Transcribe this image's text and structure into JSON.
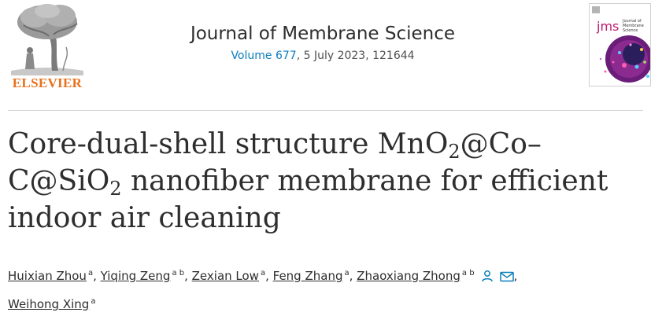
{
  "publisher": {
    "name": "ELSEVIER"
  },
  "journal": {
    "title": "Journal of Membrane Science",
    "volume_link": "Volume 677",
    "date_article": ", 5 July 2023, 121644"
  },
  "cover": {
    "abbr": "jms",
    "line1": "Journal of",
    "line2": "Membrane",
    "line3": "Science"
  },
  "article": {
    "title_part1": "Core-dual-shell structure MnO",
    "sub1": "2",
    "title_part2": "@Co–C@SiO",
    "sub2": "2",
    "title_part3": " nanofiber membrane for efficient indoor air cleaning"
  },
  "authors": [
    {
      "name": "Huixian Zhou",
      "affil": "a",
      "sep": ", "
    },
    {
      "name": "Yiqing Zeng",
      "affil": "a b",
      "sep": ", "
    },
    {
      "name": "Zexian Low",
      "affil": "a",
      "sep": ", "
    },
    {
      "name": "Feng Zhang",
      "affil": "a",
      "sep": ", "
    },
    {
      "name": "Zhaoxiang Zhong",
      "affil": "a b",
      "sep": ""
    },
    {
      "name": "Weihong Xing",
      "affil": "a",
      "sep": ""
    }
  ],
  "icons": {
    "person": "person-icon",
    "email": "envelope-icon"
  },
  "colors": {
    "brand_orange": "#e9711c",
    "link_blue": "#0c7dbb",
    "text": "#2e2e2e"
  }
}
